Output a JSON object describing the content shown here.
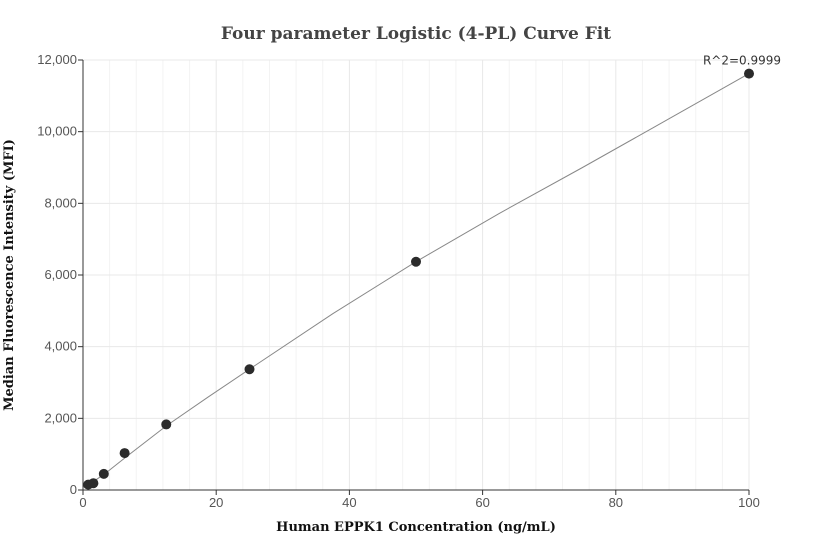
{
  "chart_data": {
    "type": "scatter",
    "title": "Four parameter Logistic (4-PL) Curve Fit",
    "xlabel": "Human EPPK1 Concentration (ng/mL)",
    "ylabel": "Median Fluorescence Intensity (MFI)",
    "xlim": [
      0,
      100
    ],
    "ylim": [
      0,
      12000
    ],
    "x_ticks": [
      0,
      20,
      40,
      60,
      80,
      100
    ],
    "y_ticks": [
      0,
      2000,
      4000,
      6000,
      8000,
      10000,
      12000
    ],
    "x_tick_labels": [
      "0",
      "20",
      "40",
      "60",
      "80",
      "100"
    ],
    "y_tick_labels": [
      "0",
      "2,000",
      "4,000",
      "6,000",
      "8,000",
      "10,000",
      "12,000"
    ],
    "grid": true,
    "points": {
      "x": [
        0.78,
        1.56,
        3.125,
        6.25,
        12.5,
        25,
        50,
        100
      ],
      "y": [
        150,
        190,
        450,
        1030,
        1830,
        3370,
        6370,
        11620
      ]
    },
    "fit_curve": {
      "x": [
        0,
        0.78,
        1.56,
        3.125,
        6.25,
        12.5,
        18.75,
        25,
        37.5,
        50,
        62.5,
        75,
        87.5,
        100
      ],
      "y": [
        60,
        150,
        240,
        430,
        890,
        1790,
        2590,
        3370,
        4920,
        6370,
        7720,
        9000,
        10310,
        11620
      ]
    },
    "annotation": "R^2=0.9999",
    "colors": {
      "point": "#2b2b2b",
      "curve": "#888888",
      "grid": "#e8e8e8",
      "minor_grid": "#f3f3f3",
      "axis": "#333333"
    }
  }
}
